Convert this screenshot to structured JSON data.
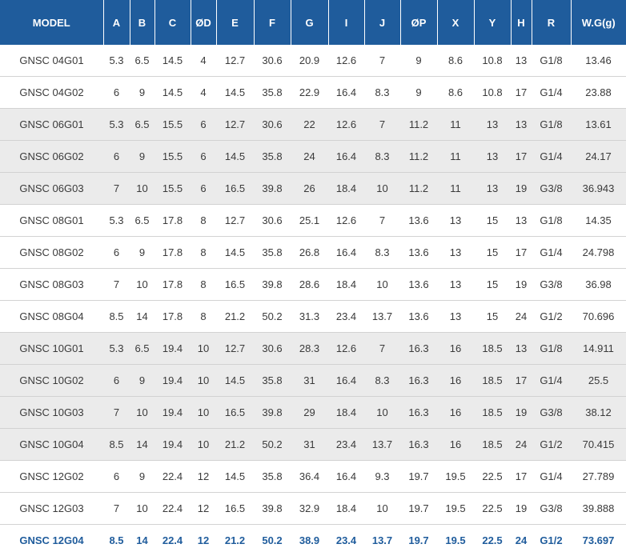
{
  "table": {
    "headers": [
      "MODEL",
      "A",
      "B",
      "C",
      "ØD",
      "E",
      "F",
      "G",
      "I",
      "J",
      "ØP",
      "X",
      "Y",
      "H",
      "R",
      "W.G(g)"
    ],
    "rows": [
      {
        "model": "GNSC 04G01",
        "A": "5.3",
        "B": "6.5",
        "C": "14.5",
        "D": "4",
        "E": "12.7",
        "F": "30.6",
        "G": "20.9",
        "I": "12.6",
        "J": "7",
        "P": "9",
        "X": "8.6",
        "Y": "10.8",
        "H": "13",
        "R": "G1/8",
        "WG": "13.46"
      },
      {
        "model": "GNSC 04G02",
        "A": "6",
        "B": "9",
        "C": "14.5",
        "D": "4",
        "E": "14.5",
        "F": "35.8",
        "G": "22.9",
        "I": "16.4",
        "J": "8.3",
        "P": "9",
        "X": "8.6",
        "Y": "10.8",
        "H": "17",
        "R": "G1/4",
        "WG": "23.88"
      },
      {
        "model": "GNSC 06G01",
        "A": "5.3",
        "B": "6.5",
        "C": "15.5",
        "D": "6",
        "E": "12.7",
        "F": "30.6",
        "G": "22",
        "I": "12.6",
        "J": "7",
        "P": "11.2",
        "X": "11",
        "Y": "13",
        "H": "13",
        "R": "G1/8",
        "WG": "13.61"
      },
      {
        "model": "GNSC 06G02",
        "A": "6",
        "B": "9",
        "C": "15.5",
        "D": "6",
        "E": "14.5",
        "F": "35.8",
        "G": "24",
        "I": "16.4",
        "J": "8.3",
        "P": "11.2",
        "X": "11",
        "Y": "13",
        "H": "17",
        "R": "G1/4",
        "WG": "24.17"
      },
      {
        "model": "GNSC 06G03",
        "A": "7",
        "B": "10",
        "C": "15.5",
        "D": "6",
        "E": "16.5",
        "F": "39.8",
        "G": "26",
        "I": "18.4",
        "J": "10",
        "P": "11.2",
        "X": "11",
        "Y": "13",
        "H": "19",
        "R": "G3/8",
        "WG": "36.943"
      },
      {
        "model": "GNSC 08G01",
        "A": "5.3",
        "B": "6.5",
        "C": "17.8",
        "D": "8",
        "E": "12.7",
        "F": "30.6",
        "G": "25.1",
        "I": "12.6",
        "J": "7",
        "P": "13.6",
        "X": "13",
        "Y": "15",
        "H": "13",
        "R": "G1/8",
        "WG": "14.35"
      },
      {
        "model": "GNSC 08G02",
        "A": "6",
        "B": "9",
        "C": "17.8",
        "D": "8",
        "E": "14.5",
        "F": "35.8",
        "G": "26.8",
        "I": "16.4",
        "J": "8.3",
        "P": "13.6",
        "X": "13",
        "Y": "15",
        "H": "17",
        "R": "G1/4",
        "WG": "24.798"
      },
      {
        "model": "GNSC 08G03",
        "A": "7",
        "B": "10",
        "C": "17.8",
        "D": "8",
        "E": "16.5",
        "F": "39.8",
        "G": "28.6",
        "I": "18.4",
        "J": "10",
        "P": "13.6",
        "X": "13",
        "Y": "15",
        "H": "19",
        "R": "G3/8",
        "WG": "36.98"
      },
      {
        "model": "GNSC 08G04",
        "A": "8.5",
        "B": "14",
        "C": "17.8",
        "D": "8",
        "E": "21.2",
        "F": "50.2",
        "G": "31.3",
        "I": "23.4",
        "J": "13.7",
        "P": "13.6",
        "X": "13",
        "Y": "15",
        "H": "24",
        "R": "G1/2",
        "WG": "70.696"
      },
      {
        "model": "GNSC 10G01",
        "A": "5.3",
        "B": "6.5",
        "C": "19.4",
        "D": "10",
        "E": "12.7",
        "F": "30.6",
        "G": "28.3",
        "I": "12.6",
        "J": "7",
        "P": "16.3",
        "X": "16",
        "Y": "18.5",
        "H": "13",
        "R": "G1/8",
        "WG": "14.911"
      },
      {
        "model": "GNSC 10G02",
        "A": "6",
        "B": "9",
        "C": "19.4",
        "D": "10",
        "E": "14.5",
        "F": "35.8",
        "G": "31",
        "I": "16.4",
        "J": "8.3",
        "P": "16.3",
        "X": "16",
        "Y": "18.5",
        "H": "17",
        "R": "G1/4",
        "WG": "25.5"
      },
      {
        "model": "GNSC 10G03",
        "A": "7",
        "B": "10",
        "C": "19.4",
        "D": "10",
        "E": "16.5",
        "F": "39.8",
        "G": "29",
        "I": "18.4",
        "J": "10",
        "P": "16.3",
        "X": "16",
        "Y": "18.5",
        "H": "19",
        "R": "G3/8",
        "WG": "38.12"
      },
      {
        "model": "GNSC 10G04",
        "A": "8.5",
        "B": "14",
        "C": "19.4",
        "D": "10",
        "E": "21.2",
        "F": "50.2",
        "G": "31",
        "I": "23.4",
        "J": "13.7",
        "P": "16.3",
        "X": "16",
        "Y": "18.5",
        "H": "24",
        "R": "G1/2",
        "WG": "70.415"
      },
      {
        "model": "GNSC 12G02",
        "A": "6",
        "B": "9",
        "C": "22.4",
        "D": "12",
        "E": "14.5",
        "F": "35.8",
        "G": "36.4",
        "I": "16.4",
        "J": "9.3",
        "P": "19.7",
        "X": "19.5",
        "Y": "22.5",
        "H": "17",
        "R": "G1/4",
        "WG": "27.789"
      },
      {
        "model": "GNSC 12G03",
        "A": "7",
        "B": "10",
        "C": "22.4",
        "D": "12",
        "E": "16.5",
        "F": "39.8",
        "G": "32.9",
        "I": "18.4",
        "J": "10",
        "P": "19.7",
        "X": "19.5",
        "Y": "22.5",
        "H": "19",
        "R": "G3/8",
        "WG": "39.888"
      },
      {
        "model": "GNSC 12G04",
        "A": "8.5",
        "B": "14",
        "C": "22.4",
        "D": "12",
        "E": "21.2",
        "F": "50.2",
        "G": "38.9",
        "I": "23.4",
        "J": "13.7",
        "P": "19.7",
        "X": "19.5",
        "Y": "22.5",
        "H": "24",
        "R": "G1/2",
        "WG": "73.697"
      }
    ],
    "shaded_rows": [
      2,
      3,
      4,
      9,
      10,
      11,
      12
    ],
    "highlighted_row": 15,
    "colors": {
      "header_bg": "#1f5c9c",
      "header_text": "#ffffff",
      "shade_bg": "#ebebeb",
      "highlight_text": "#1f5c9c",
      "body_text": "#3a3a3a"
    }
  }
}
